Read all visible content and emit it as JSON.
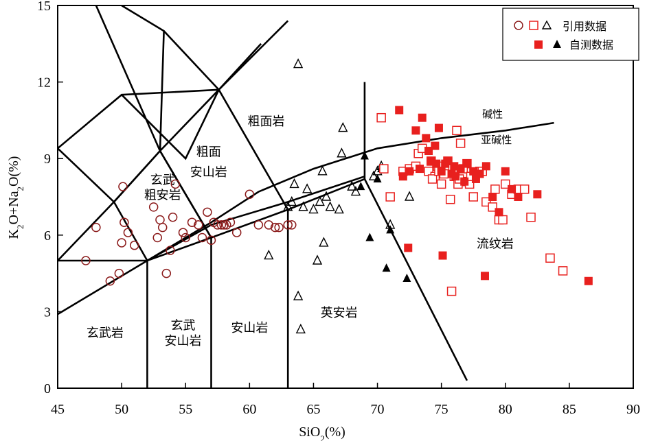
{
  "chart_data": {
    "type": "scatter",
    "title": "",
    "xlabel_main": "SiO",
    "xlabel_sub": "2",
    "xlabel_tail": "(%)",
    "ylabel_parts": [
      "K",
      "2",
      "O+Na",
      "2",
      "O(%)"
    ],
    "xlim": [
      45,
      90
    ],
    "ylim": [
      0,
      15
    ],
    "xticks": [
      45,
      50,
      55,
      60,
      65,
      70,
      75,
      80,
      85,
      90
    ],
    "yticks": [
      0,
      3,
      6,
      9,
      12,
      15
    ],
    "grid": false,
    "legend_placement": "top-right",
    "legend": {
      "row1_label": "引用数据",
      "row2_label": "自测数据"
    },
    "colors": {
      "circle": "#8b1a1a",
      "red": "#e8201e",
      "black": "#000000"
    },
    "boundary_lines": [
      [
        [
          45,
          5
        ],
        [
          52,
          5
        ],
        [
          57,
          5.9
        ],
        [
          63,
          7
        ],
        [
          69,
          8.2
        ],
        [
          77,
          0.3
        ]
      ],
      [
        [
          45,
          2.9
        ],
        [
          52,
          5
        ],
        [
          57,
          6.4
        ],
        [
          63,
          7.3
        ],
        [
          69,
          8.3
        ]
      ],
      [
        [
          52,
          0
        ],
        [
          52,
          5
        ]
      ],
      [
        [
          57,
          0
        ],
        [
          57,
          5.9
        ]
      ],
      [
        [
          63,
          0
        ],
        [
          63,
          7
        ]
      ],
      [
        [
          69,
          8.2
        ],
        [
          69,
          12
        ]
      ],
      [
        [
          45,
          9.4
        ],
        [
          49.4,
          7.3
        ],
        [
          53,
          9.3
        ],
        [
          57.6,
          11.7
        ],
        [
          63,
          14.4
        ]
      ],
      [
        [
          45,
          5
        ],
        [
          49.4,
          7.3
        ],
        [
          52,
          5
        ]
      ],
      [
        [
          48,
          15
        ],
        [
          53,
          9.3
        ],
        [
          57,
          5.9
        ]
      ],
      [
        [
          49.4,
          7.3
        ],
        [
          53,
          9.3
        ],
        [
          57,
          5.9
        ]
      ],
      [
        [
          57.6,
          11.7
        ],
        [
          60.9,
          13.5
        ]
      ],
      [
        [
          57.6,
          11.7
        ],
        [
          63,
          7
        ]
      ],
      [
        [
          50,
          15
        ],
        [
          53.3,
          14
        ],
        [
          57.6,
          11.7
        ]
      ],
      [
        [
          53.3,
          14
        ],
        [
          53,
          9.3
        ]
      ],
      [
        [
          45,
          9.4
        ],
        [
          50,
          11.5
        ],
        [
          57.6,
          11.7
        ]
      ],
      [
        [
          50,
          11.5
        ],
        [
          55,
          9
        ],
        [
          57.6,
          11.7
        ]
      ]
    ],
    "alkaline_line": [
      [
        52,
        5
      ],
      [
        57,
        6.5
      ],
      [
        60.7,
        7.7
      ],
      [
        65,
        8.6
      ],
      [
        70,
        9.4
      ],
      [
        75,
        9.8
      ],
      [
        80,
        10.1
      ],
      [
        83.8,
        10.4
      ]
    ],
    "region_labels": [
      {
        "text": "粗面岩",
        "x": 61.3,
        "y": 10.3
      },
      {
        "text": "粗面",
        "x": 56.8,
        "y": 9.1
      },
      {
        "text": "安山岩",
        "x": 56.8,
        "y": 8.3
      },
      {
        "text": "玄武",
        "x": 53.2,
        "y": 8.0
      },
      {
        "text": "粗安岩",
        "x": 53.2,
        "y": 7.4
      },
      {
        "text": "流纹岩",
        "x": 79.2,
        "y": 5.5
      },
      {
        "text": "英安岩",
        "x": 67.0,
        "y": 2.8
      },
      {
        "text": "安山岩",
        "x": 60.0,
        "y": 2.2
      },
      {
        "text": "玄武",
        "x": 54.8,
        "y": 2.3
      },
      {
        "text": "安山岩",
        "x": 54.8,
        "y": 1.7
      },
      {
        "text": "玄武岩",
        "x": 48.7,
        "y": 2.0
      },
      {
        "text": "碱性",
        "x": 79.0,
        "y": 10.6
      },
      {
        "text": "亚碱性",
        "x": 79.3,
        "y": 9.6
      }
    ],
    "series": [
      {
        "marker": "circle",
        "x": [
          47.2,
          48.0,
          49.1,
          49.8,
          50.0,
          50.1,
          50.2,
          50.5,
          51.0,
          52.5,
          52.8,
          53.0,
          53.2,
          53.5,
          53.8,
          54.0,
          54.2,
          54.8,
          55.0,
          55.5,
          56.0,
          56.3,
          56.7,
          57.0,
          57.2,
          57.5,
          57.8,
          58.0,
          58.2,
          58.5,
          59.0,
          60.0,
          60.7,
          61.5,
          62.0,
          62.3,
          63.0,
          63.3
        ],
        "y": [
          5.0,
          6.3,
          4.2,
          4.5,
          5.7,
          7.9,
          6.5,
          6.1,
          5.6,
          7.1,
          5.9,
          6.6,
          6.3,
          4.5,
          5.4,
          6.7,
          8.0,
          6.1,
          5.9,
          6.5,
          6.4,
          5.9,
          6.9,
          5.8,
          6.5,
          6.4,
          6.4,
          6.4,
          6.4,
          6.5,
          6.1,
          7.6,
          6.4,
          6.4,
          6.3,
          6.3,
          6.4,
          6.4
        ]
      },
      {
        "marker": "triangle-open",
        "x": [
          61.5,
          63.0,
          63.3,
          63.5,
          63.8,
          63.8,
          64.0,
          64.2,
          64.5,
          65.0,
          65.3,
          65.5,
          65.7,
          65.8,
          66.0,
          66.3,
          67.0,
          67.2,
          67.3,
          68.0,
          68.3,
          69.7,
          70.0,
          70.3,
          71.0,
          72.5
        ],
        "y": [
          5.2,
          7.1,
          7.3,
          8.0,
          12.7,
          3.6,
          2.3,
          7.1,
          7.8,
          7.0,
          5.0,
          7.3,
          8.5,
          5.7,
          7.5,
          7.1,
          7.0,
          9.2,
          10.2,
          7.9,
          7.7,
          8.3,
          8.5,
          8.7,
          6.4,
          7.5
        ]
      },
      {
        "marker": "triangle-filled",
        "x": [
          68.7,
          69.0,
          69.4,
          70.0,
          70.3,
          70.7,
          71.0,
          72.3
        ],
        "y": [
          7.9,
          9.1,
          5.9,
          8.2,
          8.6,
          4.7,
          6.2,
          4.3
        ]
      },
      {
        "marker": "square-open",
        "x": [
          70.3,
          70.5,
          71.0,
          72.0,
          72.5,
          73.0,
          73.2,
          73.5,
          74.0,
          74.2,
          74.5,
          74.7,
          75.0,
          75.3,
          75.5,
          75.7,
          76.0,
          76.2,
          76.5,
          76.8,
          77.0,
          77.2,
          77.5,
          78.0,
          78.5,
          79.0,
          79.5,
          80.0,
          80.5,
          81.0,
          81.5,
          82.0,
          83.5,
          84.5,
          74.3,
          74.8,
          75.2,
          75.8,
          76.3,
          76.7,
          77.3,
          78.2,
          79.2,
          79.8,
          75.9,
          76.4
        ],
        "y": [
          10.6,
          8.6,
          7.5,
          8.5,
          8.6,
          8.7,
          9.2,
          9.4,
          8.5,
          8.9,
          8.3,
          8.7,
          8.0,
          8.5,
          8.9,
          7.4,
          8.3,
          10.1,
          9.6,
          8.1,
          8.8,
          8.0,
          7.5,
          8.5,
          7.3,
          7.1,
          6.6,
          8.0,
          7.6,
          7.8,
          7.8,
          6.7,
          5.1,
          4.6,
          8.2,
          8.5,
          8.4,
          3.8,
          8.0,
          8.6,
          8.3,
          8.5,
          7.8,
          6.6,
          8.6,
          8.2
        ]
      },
      {
        "marker": "square-filled",
        "x": [
          71.7,
          72.0,
          72.5,
          73.0,
          73.5,
          73.8,
          74.0,
          74.2,
          74.5,
          74.8,
          75.0,
          75.3,
          75.5,
          75.8,
          76.0,
          76.5,
          76.8,
          77.0,
          77.5,
          78.0,
          78.5,
          79.0,
          79.5,
          80.0,
          80.5,
          81.0,
          82.5,
          86.5,
          73.3,
          75.1,
          78.4,
          72.4,
          74.6,
          76.1,
          77.7
        ],
        "y": [
          10.9,
          8.3,
          8.5,
          10.1,
          10.6,
          9.8,
          9.3,
          8.9,
          9.5,
          10.2,
          8.5,
          8.8,
          8.9,
          8.4,
          8.7,
          8.6,
          8.1,
          8.8,
          8.5,
          8.4,
          8.7,
          7.5,
          6.9,
          8.5,
          7.8,
          7.5,
          7.6,
          4.2,
          8.6,
          5.2,
          4.4,
          5.5,
          8.8,
          8.3,
          8.2
        ]
      }
    ]
  }
}
